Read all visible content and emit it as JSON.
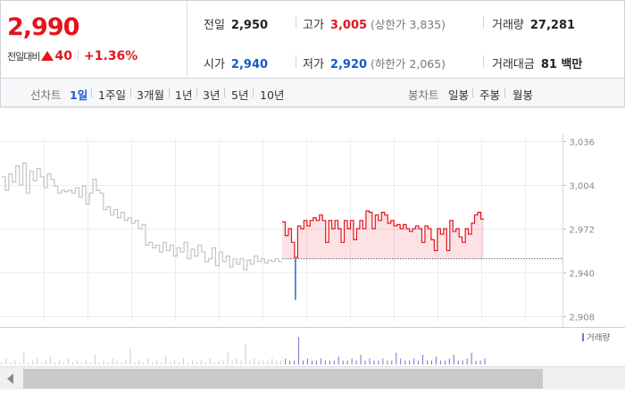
{
  "summary": {
    "price": "2,990",
    "change_label": "전일대비",
    "change_value": "40",
    "change_pct": "+1.36%",
    "prev_close_label": "전일",
    "prev_close": "2,950",
    "open_label": "시가",
    "open": "2,940",
    "high_label": "고가",
    "high": "3,005",
    "upper_limit": "(상한가 3,835)",
    "low_label": "저가",
    "low": "2,920",
    "lower_limit": "(하한가 2,065)",
    "volume_label": "거래량",
    "volume": "27,281",
    "amount_label": "거래대금",
    "amount": "81 백만"
  },
  "periods": {
    "line_label": "선차트",
    "line_items": [
      "1일",
      "1주일",
      "3개월",
      "1년",
      "3년",
      "5년",
      "10년"
    ],
    "active": "1일",
    "candle_label": "봉차트",
    "candle_items": [
      "일봉",
      "주봉",
      "월봉"
    ]
  },
  "colors": {
    "up": "#e4141e",
    "down": "#1759c9",
    "history": "#c4c4c4",
    "volume": "#7c6fc8"
  },
  "chart_data": {
    "type": "line",
    "yticks": [
      3036,
      3004,
      2972,
      2940,
      2908
    ],
    "ylim": [
      2908,
      3036
    ],
    "prev_close": 2950,
    "volume_legend": "거래량",
    "history_series": [
      3010,
      3000,
      3012,
      3006,
      3018,
      3004,
      3020,
      2998,
      3014,
      3007,
      3016,
      3010,
      3002,
      3012,
      3008,
      3003,
      2998,
      3000,
      2999,
      3000,
      2998,
      3002,
      2995,
      3003,
      2990,
      2998,
      3008,
      3000,
      2998,
      2986,
      2988,
      2982,
      2986,
      2980,
      2984,
      2978,
      2980,
      2976,
      2978,
      2972,
      2975,
      2960,
      2962,
      2958,
      2960,
      2955,
      2962,
      2956,
      2960,
      2952,
      2958,
      2955,
      2962,
      2950,
      2957,
      2952,
      2960,
      2955,
      2948,
      2950,
      2958,
      2945,
      2955,
      2948,
      2952,
      2944,
      2950,
      2946,
      2950,
      2942,
      2949,
      2946,
      2952,
      2948,
      2950,
      2947,
      2949,
      2948,
      2950,
      2948
    ],
    "today_series": [
      2977,
      2967,
      2972,
      2962,
      2951,
      2974,
      2972,
      2978,
      2974,
      2978,
      2980,
      2978,
      2982,
      2978,
      2962,
      2978,
      2972,
      2978,
      2972,
      2962,
      2978,
      2972,
      2978,
      2964,
      2972,
      2978,
      2972,
      2985,
      2984,
      2972,
      2982,
      2978,
      2984,
      2982,
      2976,
      2978,
      2974,
      2975,
      2972,
      2975,
      2972,
      2970,
      2972,
      2974,
      2972,
      2962,
      2974,
      2972,
      2964,
      2956,
      2972,
      2968,
      2972,
      2956,
      2978,
      2970,
      2972,
      2966,
      2962,
      2972,
      2968,
      2976,
      2982,
      2984,
      2979
    ],
    "spike_low": 2920,
    "volume_bars": [
      1,
      3,
      1,
      2,
      1,
      6,
      1,
      2,
      3,
      1,
      2,
      4,
      1,
      2,
      1,
      3,
      1,
      2,
      1,
      2,
      1,
      5,
      1,
      2,
      1,
      3,
      2,
      1,
      2,
      8,
      1,
      2,
      1,
      3,
      1,
      2,
      1,
      4,
      1,
      2,
      1,
      3,
      1,
      2,
      1,
      2,
      1,
      3,
      1,
      2,
      2,
      6,
      2,
      3,
      2,
      10,
      2,
      3,
      2,
      2,
      2,
      3,
      2,
      2,
      3,
      2,
      2,
      14,
      2,
      3,
      2,
      2,
      3,
      2,
      2,
      2,
      4,
      2,
      2,
      3,
      2,
      5,
      2,
      3,
      2,
      2,
      3,
      2,
      2,
      6,
      3,
      2,
      2,
      3,
      2,
      5,
      2,
      2,
      4,
      2,
      2,
      3,
      5,
      2,
      2,
      3,
      6,
      2,
      2,
      3
    ]
  }
}
